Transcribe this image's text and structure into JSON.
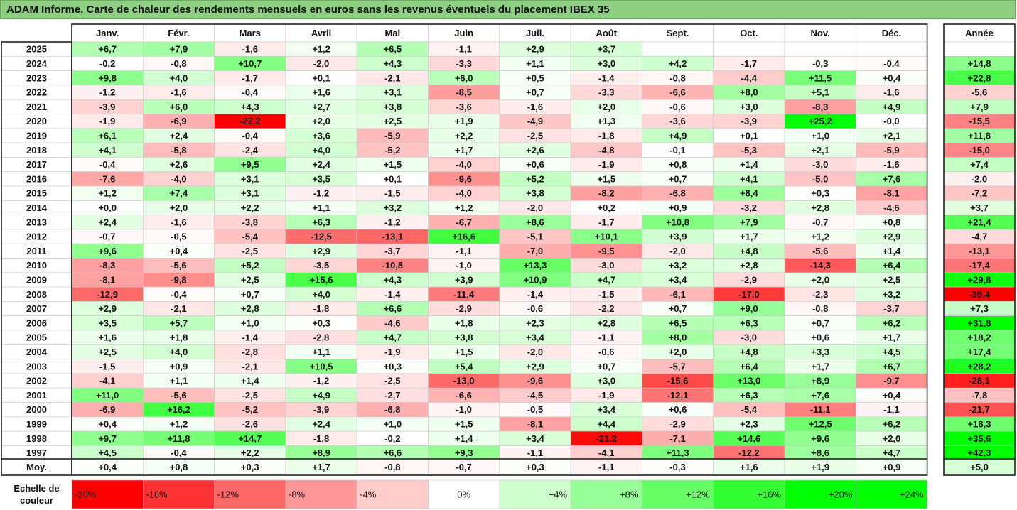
{
  "title": "ADAM Informe. Carte de chaleur des rendements mensuels en euros sans les revenus éventuels du placement IBEX 35",
  "chart_data": {
    "type": "heatmap",
    "months": [
      "Janv.",
      "Févr.",
      "Mars",
      "Avril",
      "Mai",
      "Juin",
      "Juil.",
      "Août",
      "Sept.",
      "Oct.",
      "Nov.",
      "Déc."
    ],
    "year_header": "Année",
    "rows": [
      {
        "year": "2025",
        "values": [
          "+6,7",
          "+7,9",
          "-1,6",
          "+1,2",
          "+6,5",
          "-1,1",
          "+2,9",
          "+3,7",
          "",
          "",
          "",
          ""
        ],
        "annual": ""
      },
      {
        "year": "2024",
        "values": [
          "-0,2",
          "-0,8",
          "+10,7",
          "-2,0",
          "+4,3",
          "-3,3",
          "+1,1",
          "+3,0",
          "+4,2",
          "-1,7",
          "-0,3",
          "-0,4"
        ],
        "annual": "+14,8"
      },
      {
        "year": "2023",
        "values": [
          "+9,8",
          "+4,0",
          "-1,7",
          "+0,1",
          "-2,1",
          "+6,0",
          "+0,5",
          "-1,4",
          "-0,8",
          "-4,4",
          "+11,5",
          "+0,4"
        ],
        "annual": "+22,8"
      },
      {
        "year": "2022",
        "values": [
          "-1,2",
          "-1,6",
          "-0,4",
          "+1,6",
          "+3,1",
          "-8,5",
          "+0,7",
          "-3,3",
          "-6,6",
          "+8,0",
          "+5,1",
          "-1,6"
        ],
        "annual": "-5,6"
      },
      {
        "year": "2021",
        "values": [
          "-3,9",
          "+6,0",
          "+4,3",
          "+2,7",
          "+3,8",
          "-3,6",
          "-1,6",
          "+2,0",
          "-0,6",
          "+3,0",
          "-8,3",
          "+4,9"
        ],
        "annual": "+7,9"
      },
      {
        "year": "2020",
        "values": [
          "-1,9",
          "-6,9",
          "-22,2",
          "+2,0",
          "+2,5",
          "+1,9",
          "-4,9",
          "+1,3",
          "-3,6",
          "-3,9",
          "+25,2",
          "-0,0"
        ],
        "annual": "-15,5"
      },
      {
        "year": "2019",
        "values": [
          "+6,1",
          "+2,4",
          "-0,4",
          "+3,6",
          "-5,9",
          "+2,2",
          "-2,5",
          "-1,8",
          "+4,9",
          "+0,1",
          "+1,0",
          "+2,1"
        ],
        "annual": "+11,8"
      },
      {
        "year": "2018",
        "values": [
          "+4,1",
          "-5,8",
          "-2,4",
          "+4,0",
          "-5,2",
          "+1,7",
          "+2,6",
          "-4,8",
          "-0,1",
          "-5,3",
          "+2,1",
          "-5,9"
        ],
        "annual": "-15,0"
      },
      {
        "year": "2017",
        "values": [
          "-0,4",
          "+2,6",
          "+9,5",
          "+2,4",
          "+1,5",
          "-4,0",
          "+0,6",
          "-1,9",
          "+0,8",
          "+1,4",
          "-3,0",
          "-1,6"
        ],
        "annual": "+7,4"
      },
      {
        "year": "2016",
        "values": [
          "-7,6",
          "-4,0",
          "+3,1",
          "+3,5",
          "+0,1",
          "-9,6",
          "+5,2",
          "+1,5",
          "+0,7",
          "+4,1",
          "-5,0",
          "+7,6"
        ],
        "annual": "-2,0"
      },
      {
        "year": "2015",
        "values": [
          "+1,2",
          "+7,4",
          "+3,1",
          "-1,2",
          "-1,5",
          "-4,0",
          "+3,8",
          "-8,2",
          "-6,8",
          "+8,4",
          "+0,3",
          "-8,1"
        ],
        "annual": "-7,2"
      },
      {
        "year": "2014",
        "values": [
          "+0,0",
          "+2,0",
          "+2,2",
          "+1,1",
          "+3,2",
          "+1,2",
          "-2,0",
          "+0,2",
          "+0,9",
          "-3,2",
          "+2,8",
          "-4,6"
        ],
        "annual": "+3,7"
      },
      {
        "year": "2013",
        "values": [
          "+2,4",
          "-1,6",
          "-3,8",
          "+6,3",
          "-1,2",
          "-6,7",
          "+8,6",
          "-1,7",
          "+10,8",
          "+7,9",
          "-0,7",
          "+0,8"
        ],
        "annual": "+21,4"
      },
      {
        "year": "2012",
        "values": [
          "-0,7",
          "-0,5",
          "-5,4",
          "-12,5",
          "-13,1",
          "+16,6",
          "-5,1",
          "+10,1",
          "+3,9",
          "+1,7",
          "+1,2",
          "+2,9"
        ],
        "annual": "-4,7"
      },
      {
        "year": "2011",
        "values": [
          "+9,6",
          "+0,4",
          "-2,5",
          "+2,9",
          "-3,7",
          "-1,1",
          "-7,0",
          "-9,5",
          "-2,0",
          "+4,8",
          "-5,6",
          "+1,4"
        ],
        "annual": "-13,1"
      },
      {
        "year": "2010",
        "values": [
          "-8,3",
          "-5,6",
          "+5,2",
          "-3,5",
          "-10,8",
          "-1,0",
          "+13,3",
          "-3,0",
          "+3,2",
          "+2,8",
          "-14,3",
          "+6,4"
        ],
        "annual": "-17,4"
      },
      {
        "year": "2009",
        "values": [
          "-8,1",
          "-9,8",
          "+2,5",
          "+15,6",
          "+4,3",
          "+3,9",
          "+10,9",
          "+4,7",
          "+3,4",
          "-2,9",
          "+2,0",
          "+2,5"
        ],
        "annual": "+29,8"
      },
      {
        "year": "2008",
        "values": [
          "-12,9",
          "-0,4",
          "+0,7",
          "+4,0",
          "-1,4",
          "-11,4",
          "-1,4",
          "-1,5",
          "-6,1",
          "-17,0",
          "-2,3",
          "+3,2"
        ],
        "annual": "-39,4"
      },
      {
        "year": "2007",
        "values": [
          "+2,9",
          "-2,1",
          "+2,8",
          "-1,8",
          "+6,6",
          "-2,9",
          "-0,6",
          "-2,2",
          "+0,7",
          "+9,0",
          "-0,8",
          "-3,7"
        ],
        "annual": "+7,3"
      },
      {
        "year": "2006",
        "values": [
          "+3,5",
          "+5,7",
          "+1,0",
          "+0,3",
          "-4,6",
          "+1,8",
          "+2,3",
          "+2,8",
          "+6,5",
          "+6,3",
          "+0,7",
          "+6,2"
        ],
        "annual": "+31,8"
      },
      {
        "year": "2005",
        "values": [
          "+1,6",
          "+1,8",
          "-1,4",
          "-2,8",
          "+4,7",
          "+3,8",
          "+3,4",
          "-1,1",
          "+8,0",
          "-3,0",
          "+0,6",
          "+1,7"
        ],
        "annual": "+18,2"
      },
      {
        "year": "2004",
        "values": [
          "+2,5",
          "+4,0",
          "-2,8",
          "+1,1",
          "-1,9",
          "+1,5",
          "-2,0",
          "-0,6",
          "+2,0",
          "+4,8",
          "+3,3",
          "+4,5"
        ],
        "annual": "+17,4"
      },
      {
        "year": "2003",
        "values": [
          "-1,5",
          "+0,9",
          "-2,1",
          "+10,5",
          "+0,3",
          "+5,4",
          "+2,9",
          "+0,7",
          "-5,7",
          "+6,4",
          "+1,7",
          "+6,7"
        ],
        "annual": "+28,2"
      },
      {
        "year": "2002",
        "values": [
          "-4,1",
          "+1,1",
          "+1,4",
          "-1,2",
          "-2,5",
          "-13,0",
          "-9,6",
          "+3,0",
          "-15,6",
          "+13,0",
          "+8,9",
          "-9,7"
        ],
        "annual": "-28,1"
      },
      {
        "year": "2001",
        "values": [
          "+11,0",
          "-5,6",
          "-2,5",
          "+4,9",
          "-2,7",
          "-6,6",
          "-4,5",
          "-1,9",
          "-12,1",
          "+6,3",
          "+7,6",
          "+0,4"
        ],
        "annual": "-7,8"
      },
      {
        "year": "2000",
        "values": [
          "-6,9",
          "+16,2",
          "-5,2",
          "-3,9",
          "-6,8",
          "-1,0",
          "-0,5",
          "+3,4",
          "+0,6",
          "-5,4",
          "-11,1",
          "-1,1"
        ],
        "annual": "-21,7"
      },
      {
        "year": "1999",
        "values": [
          "+0,4",
          "+1,2",
          "-2,6",
          "+2,4",
          "+1,0",
          "+1,5",
          "-8,1",
          "+4,4",
          "-2,9",
          "+2,3",
          "+12,5",
          "+6,2"
        ],
        "annual": "+18,3"
      },
      {
        "year": "1998",
        "values": [
          "+9,7",
          "+11,8",
          "+14,7",
          "-1,8",
          "-0,2",
          "+1,4",
          "+3,4",
          "-21,2",
          "-7,1",
          "+14,6",
          "+9,6",
          "+2,0"
        ],
        "annual": "+35,6"
      },
      {
        "year": "1997",
        "values": [
          "+4,5",
          "-0,4",
          "+2,2",
          "+8,9",
          "+6,6",
          "+9,3",
          "-1,1",
          "-4,1",
          "+11,3",
          "-12,2",
          "+8,6",
          "+4,7"
        ],
        "annual": "+42,3"
      }
    ],
    "average": {
      "label": "Moy.",
      "values": [
        "+0,4",
        "+0,8",
        "+0,3",
        "+1,7",
        "-0,8",
        "-0,7",
        "+0,3",
        "-1,1",
        "-0,3",
        "+1,6",
        "+1,9",
        "+0,9"
      ],
      "annual": "+5,0"
    },
    "scale": {
      "label_line1": "Echelle de",
      "label_line2": "couleur",
      "stops": [
        {
          "label": "-20%",
          "value": -20,
          "color": "#ff0000"
        },
        {
          "label": "-16%",
          "value": -16,
          "color": "#ff3333"
        },
        {
          "label": "-12%",
          "value": -12,
          "color": "#ff6666"
        },
        {
          "label": "-8%",
          "value": -8,
          "color": "#ff9999"
        },
        {
          "label": "-4%",
          "value": -4,
          "color": "#ffcccc"
        },
        {
          "label": "0%",
          "value": 0,
          "color": "#ffffff"
        },
        {
          "label": "+4%",
          "value": 4,
          "color": "#ccffcc"
        },
        {
          "label": "+8%",
          "value": 8,
          "color": "#99ff99"
        },
        {
          "label": "+12%",
          "value": 12,
          "color": "#66ff66"
        },
        {
          "label": "+16%",
          "value": 16,
          "color": "#33ff33"
        },
        {
          "label": "+20%",
          "value": 20,
          "color": "#00ff00"
        },
        {
          "label": "+24%",
          "value": 24,
          "color": "#00ff00"
        }
      ]
    },
    "colors": {
      "negative": "#ff0000",
      "positive": "#00ff00",
      "neutral": "#ffffff",
      "title_bar": "#8fcf84"
    }
  }
}
